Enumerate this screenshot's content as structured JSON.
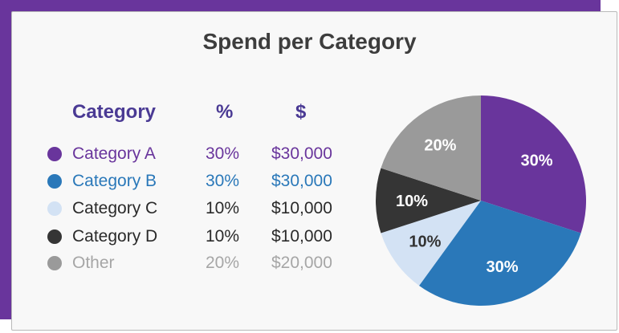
{
  "chart_data": {
    "type": "pie",
    "title": "Spend per Category",
    "table_headers": [
      "Category",
      "%",
      "$"
    ],
    "slices": [
      {
        "name": "Category A",
        "percent": 30,
        "percent_label": "30%",
        "amount": 30000,
        "amount_label": "$30,000",
        "color": "#69359c",
        "label_color": "#ffffff"
      },
      {
        "name": "Category B",
        "percent": 30,
        "percent_label": "30%",
        "amount": 30000,
        "amount_label": "$30,000",
        "color": "#2a78b9",
        "label_color": "#ffffff"
      },
      {
        "name": "Category C",
        "percent": 10,
        "percent_label": "10%",
        "amount": 10000,
        "amount_label": "$10,000",
        "color": "#d3e2f4",
        "label_color": "#333333"
      },
      {
        "name": "Category D",
        "percent": 10,
        "percent_label": "10%",
        "amount": 10000,
        "amount_label": "$10,000",
        "color": "#353535",
        "label_color": "#ffffff"
      },
      {
        "name": "Other",
        "percent": 20,
        "percent_label": "20%",
        "amount": 20000,
        "amount_label": "$20,000",
        "color": "#9a9a9a",
        "label_color": "#ffffff"
      }
    ]
  },
  "theme": {
    "accent": "#69359c",
    "header_color": "#4a3a94",
    "title_color": "#3d3d3d",
    "row_text_colors": [
      "#69359c",
      "#2a78b9",
      "#2a2a2a",
      "#2a2a2a",
      "#a6a6a6"
    ]
  }
}
